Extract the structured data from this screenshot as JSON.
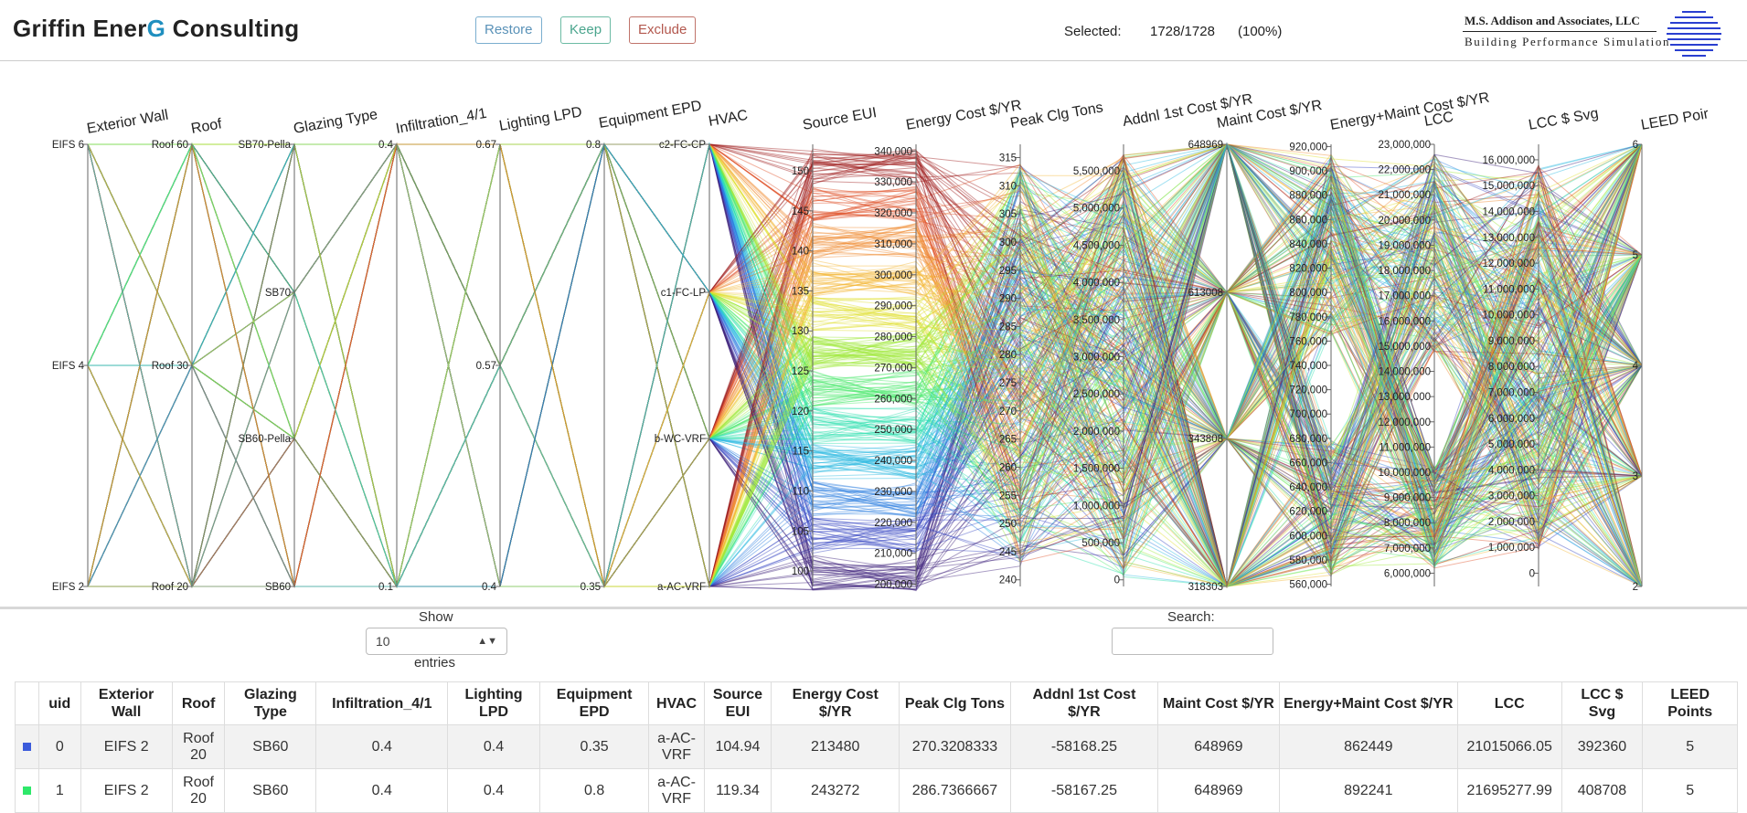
{
  "header": {
    "brand_main": "Griffin Ener",
    "brand_accent": "G",
    "brand_tail": " Consulting",
    "buttons": {
      "restore": "Restore",
      "keep": "Keep",
      "exclude": "Exclude"
    },
    "selected_label": "Selected:",
    "selected_count": "1728/1728",
    "selected_pct": "(100%)",
    "logo_line1": "M.S. Addison and Associates, LLC",
    "logo_line2": "Building Performance Simulation"
  },
  "parcoords": {
    "axes": [
      {
        "label": "Exterior Wall",
        "ticks": [
          "EIFS 6",
          "EIFS 4",
          "EIFS 2"
        ]
      },
      {
        "label": "Roof",
        "ticks": [
          "Roof 60",
          "Roof 30",
          "Roof 20"
        ]
      },
      {
        "label": "Glazing Type",
        "ticks": [
          "SB70-Pella",
          "SB70",
          "SB60-Pella",
          "SB60"
        ]
      },
      {
        "label": "Infiltration_4/1",
        "ticks": [
          "0.4",
          "0.1"
        ]
      },
      {
        "label": "Lighting LPD",
        "ticks": [
          "0.67",
          "0.57",
          "0.4"
        ]
      },
      {
        "label": "Equipment EPD",
        "ticks": [
          "0.8",
          "0.35"
        ]
      },
      {
        "label": "HVAC",
        "ticks": [
          "c2-FC-CP",
          "c1-FC-LP",
          "b-WC-VRF",
          "a-AC-VRF"
        ]
      },
      {
        "label": "Source EUI",
        "ticks": [
          "150",
          "145",
          "140",
          "135",
          "130",
          "125",
          "120",
          "115",
          "110",
          "105",
          "100"
        ]
      },
      {
        "label": "Energy Cost $/YR",
        "ticks": [
          "340,000",
          "330,000",
          "320,000",
          "310,000",
          "300,000",
          "290,000",
          "280,000",
          "270,000",
          "260,000",
          "250,000",
          "240,000",
          "230,000",
          "220,000",
          "210,000",
          "200,000"
        ]
      },
      {
        "label": "Peak Clg Tons",
        "ticks": [
          "315",
          "310",
          "305",
          "300",
          "295",
          "290",
          "285",
          "280",
          "275",
          "270",
          "265",
          "260",
          "255",
          "250",
          "245",
          "240"
        ]
      },
      {
        "label": "Addnl 1st Cost $/YR",
        "ticks": [
          "5,500,000",
          "5,000,000",
          "4,500,000",
          "4,000,000",
          "3,500,000",
          "3,000,000",
          "2,500,000",
          "2,000,000",
          "1,500,000",
          "1,000,000",
          "500,000",
          "0"
        ]
      },
      {
        "label": "Maint Cost $/YR",
        "ticks": [
          "648969",
          "613008",
          "343808",
          "318303"
        ]
      },
      {
        "label": "Energy+Maint Cost $/YR",
        "ticks": [
          "920,000",
          "900,000",
          "880,000",
          "860,000",
          "840,000",
          "820,000",
          "800,000",
          "780,000",
          "760,000",
          "740,000",
          "720,000",
          "700,000",
          "680,000",
          "660,000",
          "640,000",
          "620,000",
          "600,000",
          "580,000",
          "560,000"
        ]
      },
      {
        "label": "LCC",
        "ticks": [
          "23,000,000",
          "22,000,000",
          "21,000,000",
          "20,000,000",
          "19,000,000",
          "18,000,000",
          "17,000,000",
          "16,000,000",
          "15,000,000",
          "14,000,000",
          "13,000,000",
          "12,000,000",
          "11,000,000",
          "10,000,000",
          "9,000,000",
          "8,000,000",
          "7,000,000",
          "6,000,000"
        ]
      },
      {
        "label": "LCC $ Svg",
        "ticks": [
          "16,000,000",
          "15,000,000",
          "14,000,000",
          "13,000,000",
          "12,000,000",
          "11,000,000",
          "10,000,000",
          "9,000,000",
          "8,000,000",
          "7,000,000",
          "6,000,000",
          "5,000,000",
          "4,000,000",
          "3,000,000",
          "2,000,000",
          "1,000,000",
          "0"
        ]
      },
      {
        "label": "LEED Poir",
        "ticks": [
          "6",
          "5",
          "4",
          "3",
          "2"
        ]
      }
    ]
  },
  "controls": {
    "show_label": "Show",
    "entries_value": "10",
    "entries_label": "entries",
    "search_label": "Search:"
  },
  "table": {
    "columns": [
      "uid",
      "Exterior Wall",
      "Roof",
      "Glazing Type",
      "Infiltration_4/1",
      "Lighting LPD",
      "Equipment EPD",
      "HVAC",
      "Source EUI",
      "Energy Cost $/YR",
      "Peak Clg Tons",
      "Addnl 1st Cost $/YR",
      "Maint Cost $/YR",
      "Energy+Maint Cost $/YR",
      "LCC",
      "LCC $ Svg",
      "LEED Points"
    ],
    "rows": [
      {
        "color": "#3b5bdb",
        "cells": [
          "0",
          "EIFS 2",
          "Roof 20",
          "SB60",
          "0.4",
          "0.4",
          "0.35",
          "a-AC-VRF",
          "104.94",
          "213480",
          "270.3208333",
          "-58168.25",
          "648969",
          "862449",
          "21015066.05",
          "392360",
          "5"
        ]
      },
      {
        "color": "#2ee86a",
        "cells": [
          "1",
          "EIFS 2",
          "Roof 20",
          "SB60",
          "0.4",
          "0.4",
          "0.8",
          "a-AC-VRF",
          "119.34",
          "243272",
          "286.7366667",
          "-58167.25",
          "648969",
          "892241",
          "21695277.99",
          "408708",
          "5"
        ]
      }
    ]
  }
}
